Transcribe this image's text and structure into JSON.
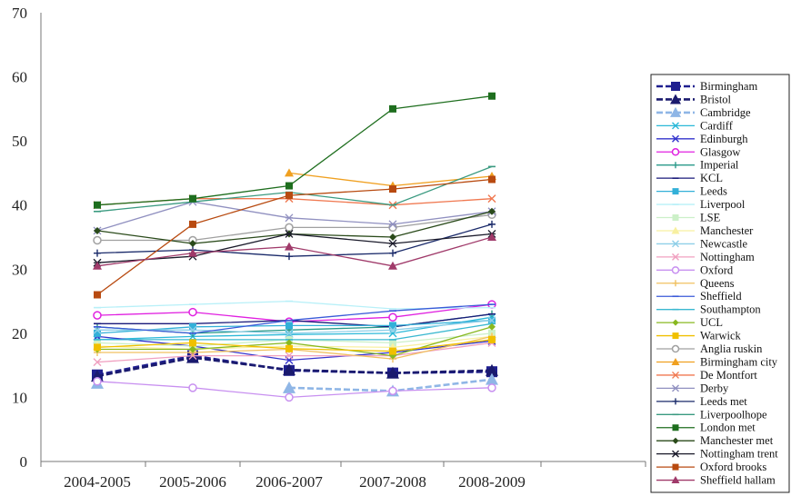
{
  "chart_data": {
    "type": "line",
    "title": "",
    "xlabel": "",
    "ylabel": "",
    "categories": [
      "2004-2005",
      "2005-2006",
      "2006-2007",
      "2007-2008",
      "2008-2009"
    ],
    "ylim": [
      0,
      70
    ],
    "yticks": [
      0,
      10,
      20,
      30,
      40,
      50,
      60,
      70
    ],
    "grid": false,
    "legend_position": "right",
    "series": [
      {
        "name": "Birmingham",
        "color": "#1f1f8f",
        "marker": "square",
        "dash": "dash",
        "values": [
          13.5,
          16.5,
          14.2,
          13.8,
          14.0
        ]
      },
      {
        "name": "Bristol",
        "color": "#1a1a6e",
        "marker": "triangle",
        "dash": "dash",
        "values": [
          13.3,
          16.2,
          14.3,
          13.8,
          14.2
        ]
      },
      {
        "name": "Cambridge",
        "color": "#8fb6e6",
        "marker": "triangle",
        "dash": "dash",
        "values": [
          12.2,
          null,
          11.5,
          11.0,
          12.8
        ]
      },
      {
        "name": "Cardiff",
        "color": "#2bb8d8",
        "marker": "x",
        "dash": "solid",
        "values": [
          19.0,
          19.5,
          19.8,
          20.0,
          22.5
        ]
      },
      {
        "name": "Edinburgh",
        "color": "#3333cc",
        "marker": "x",
        "dash": "solid",
        "values": [
          19.5,
          18.0,
          15.8,
          17.0,
          18.8
        ]
      },
      {
        "name": "Glasgow",
        "color": "#e020e0",
        "marker": "circle",
        "dash": "solid",
        "values": [
          22.8,
          23.3,
          21.8,
          22.5,
          24.5
        ]
      },
      {
        "name": "Imperial",
        "color": "#2a9a8a",
        "marker": "plus",
        "dash": "solid",
        "values": [
          21.0,
          20.0,
          20.5,
          21.0,
          23.0
        ]
      },
      {
        "name": "KCL",
        "color": "#1a1a7a",
        "marker": "dash",
        "dash": "solid",
        "values": [
          21.5,
          21.5,
          22.0,
          21.0,
          23.0
        ]
      },
      {
        "name": "Leeds",
        "color": "#33b0d8",
        "marker": "square",
        "dash": "solid",
        "values": [
          20.0,
          21.0,
          21.2,
          21.2,
          22.0
        ]
      },
      {
        "name": "Liverpool",
        "color": "#b8f0f8",
        "marker": "dash",
        "dash": "solid",
        "values": [
          24.0,
          24.5,
          25.0,
          23.8,
          24.0
        ]
      },
      {
        "name": "LSE",
        "color": "#ccf0c8",
        "marker": "square",
        "dash": "solid",
        "values": [
          18.5,
          18.0,
          19.0,
          18.5,
          20.0
        ]
      },
      {
        "name": "Manchester",
        "color": "#f8f0a0",
        "marker": "triangle",
        "dash": "solid",
        "values": [
          18.0,
          17.5,
          18.0,
          17.8,
          19.5
        ]
      },
      {
        "name": "Newcastle",
        "color": "#8fcfe8",
        "marker": "x",
        "dash": "solid",
        "values": [
          20.5,
          20.5,
          20.0,
          20.5,
          22.0
        ]
      },
      {
        "name": "Nottingham",
        "color": "#f0a0c0",
        "marker": "x",
        "dash": "solid",
        "values": [
          15.5,
          16.5,
          16.5,
          16.5,
          18.5
        ]
      },
      {
        "name": "Oxford",
        "color": "#c890f0",
        "marker": "circle",
        "dash": "solid",
        "values": [
          12.5,
          11.5,
          10.0,
          11.0,
          11.5
        ]
      },
      {
        "name": "Queens",
        "color": "#f0c060",
        "marker": "plus",
        "dash": "solid",
        "values": [
          17.0,
          17.0,
          17.5,
          16.0,
          19.5
        ]
      },
      {
        "name": "Sheffield",
        "color": "#3a5ad8",
        "marker": "dash",
        "dash": "solid",
        "values": [
          21.0,
          20.0,
          22.0,
          23.5,
          24.5
        ]
      },
      {
        "name": "Southampton",
        "color": "#3ab8d0",
        "marker": "dash",
        "dash": "solid",
        "values": [
          19.0,
          19.0,
          19.0,
          19.0,
          21.5
        ]
      },
      {
        "name": "UCL",
        "color": "#88b820",
        "marker": "diamond",
        "dash": "solid",
        "values": [
          17.5,
          17.5,
          18.5,
          16.5,
          21.0
        ]
      },
      {
        "name": "Warwick",
        "color": "#f0c000",
        "marker": "square",
        "dash": "solid",
        "values": [
          17.8,
          18.5,
          17.6,
          17.2,
          19.0
        ]
      },
      {
        "name": "Anglia ruskin",
        "color": "#a0a0a0",
        "marker": "circle",
        "dash": "solid",
        "values": [
          34.5,
          34.5,
          36.5,
          36.5,
          38.5
        ]
      },
      {
        "name": "Birmingham city",
        "color": "#f0a020",
        "marker": "triangle",
        "dash": "solid",
        "values": [
          null,
          null,
          45.0,
          43.0,
          44.5
        ]
      },
      {
        "name": "De Montfort",
        "color": "#f07850",
        "marker": "x",
        "dash": "solid",
        "values": [
          40.0,
          41.0,
          41.0,
          40.0,
          41.0
        ]
      },
      {
        "name": "Derby",
        "color": "#9090c0",
        "marker": "star",
        "dash": "solid",
        "values": [
          36.0,
          40.5,
          38.0,
          37.0,
          39.0
        ]
      },
      {
        "name": "Leeds met",
        "color": "#1a2a6a",
        "marker": "plus",
        "dash": "solid",
        "values": [
          32.5,
          33.0,
          32.0,
          32.5,
          37.0
        ]
      },
      {
        "name": "Liverpoolhope",
        "color": "#3a9a80",
        "marker": "dash",
        "dash": "solid",
        "values": [
          39.0,
          40.5,
          42.0,
          40.0,
          46.0
        ]
      },
      {
        "name": "London met",
        "color": "#1e6e1e",
        "marker": "square",
        "dash": "solid",
        "values": [
          40.0,
          41.0,
          43.0,
          55.0,
          57.0
        ]
      },
      {
        "name": "Manchester met",
        "color": "#2a4a1a",
        "marker": "diamond",
        "dash": "solid",
        "values": [
          36.0,
          34.0,
          35.5,
          35.0,
          39.0
        ]
      },
      {
        "name": "Nottingham trent",
        "color": "#1a1a2a",
        "marker": "star",
        "dash": "solid",
        "values": [
          31.0,
          32.0,
          35.5,
          34.0,
          35.5
        ]
      },
      {
        "name": "Oxford brooks",
        "color": "#b84a10",
        "marker": "square",
        "dash": "solid",
        "values": [
          26.0,
          37.0,
          41.5,
          42.5,
          44.0
        ]
      },
      {
        "name": "Sheffield hallam",
        "color": "#a03a6a",
        "marker": "triangle",
        "dash": "solid",
        "values": [
          30.5,
          32.5,
          33.5,
          30.5,
          35.0
        ]
      }
    ]
  }
}
